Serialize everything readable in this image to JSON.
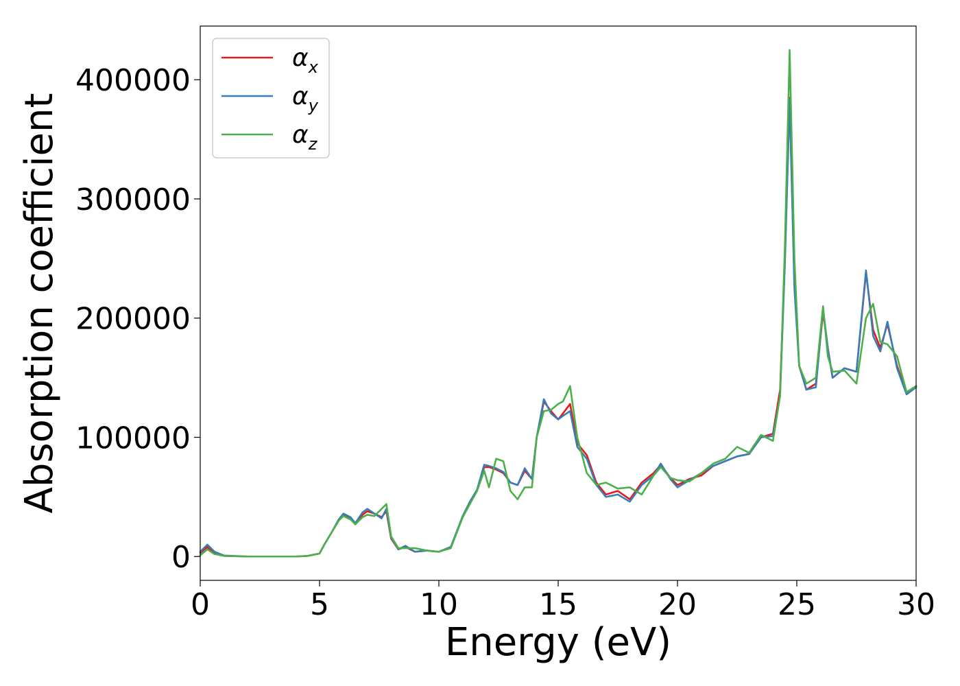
{
  "chart_data": {
    "type": "line",
    "title": "",
    "xlabel": "Energy (eV)",
    "ylabel": "Absorption coefficient",
    "xlim": [
      0,
      30
    ],
    "ylim": [
      -20000,
      445000
    ],
    "xticks": [
      0,
      5,
      10,
      15,
      20,
      25,
      30
    ],
    "yticks": [
      0,
      100000,
      200000,
      300000,
      400000
    ],
    "grid": false,
    "legend_position": "top-left",
    "series": [
      {
        "name": "α",
        "subscript": "x",
        "color": "#e41a1c",
        "x": [
          0,
          0.3,
          0.6,
          1,
          2,
          3,
          4,
          4.5,
          5,
          5.2,
          5.5,
          5.8,
          6.0,
          6.3,
          6.5,
          6.8,
          7.0,
          7.3,
          7.6,
          7.8,
          8.0,
          8.3,
          8.6,
          9.0,
          9.5,
          10.0,
          10.5,
          11.0,
          11.3,
          11.6,
          11.9,
          12.1,
          12.4,
          12.7,
          13.0,
          13.3,
          13.6,
          13.9,
          14.1,
          14.4,
          14.7,
          15.0,
          15.2,
          15.5,
          15.8,
          16.2,
          16.6,
          17.0,
          17.5,
          18.0,
          18.5,
          19.0,
          19.3,
          19.7,
          20.0,
          20.5,
          21.0,
          21.5,
          22.0,
          22.5,
          23.0,
          23.5,
          24.0,
          24.3,
          24.5,
          24.7,
          24.9,
          25.1,
          25.4,
          25.8,
          26.1,
          26.3,
          26.5,
          27.0,
          27.5,
          27.9,
          28.2,
          28.5,
          28.8,
          29.2,
          29.6,
          30.0
        ],
        "y": [
          3000,
          8000,
          2500,
          500,
          0,
          0,
          0,
          500,
          2500,
          10000,
          20000,
          30000,
          35000,
          32000,
          27000,
          35000,
          38000,
          36000,
          33000,
          38000,
          15000,
          6000,
          8000,
          4000,
          5000,
          4000,
          8000,
          33000,
          45000,
          55000,
          75000,
          75000,
          73000,
          70000,
          62000,
          60000,
          72000,
          65000,
          100000,
          130000,
          122000,
          115000,
          120000,
          128000,
          95000,
          85000,
          62000,
          52000,
          55000,
          48000,
          62000,
          70000,
          77000,
          66000,
          60000,
          65000,
          68000,
          76000,
          80000,
          84000,
          86000,
          100000,
          103000,
          140000,
          250000,
          385000,
          230000,
          160000,
          140000,
          145000,
          205000,
          175000,
          150000,
          158000,
          155000,
          238000,
          190000,
          175000,
          195000,
          160000,
          137000,
          143000
        ]
      },
      {
        "name": "α",
        "subscript": "y",
        "color": "#377eb8",
        "x": [
          0,
          0.3,
          0.6,
          1,
          2,
          3,
          4,
          4.5,
          5,
          5.2,
          5.5,
          5.8,
          6.0,
          6.3,
          6.5,
          6.8,
          7.0,
          7.3,
          7.6,
          7.8,
          8.0,
          8.3,
          8.6,
          9.0,
          9.5,
          10.0,
          10.5,
          11.0,
          11.3,
          11.6,
          11.9,
          12.1,
          12.4,
          12.7,
          13.0,
          13.3,
          13.6,
          13.9,
          14.1,
          14.4,
          14.7,
          15.0,
          15.2,
          15.5,
          15.8,
          16.2,
          16.6,
          17.0,
          17.5,
          18.0,
          18.5,
          19.0,
          19.3,
          19.7,
          20.0,
          20.5,
          21.0,
          21.5,
          22.0,
          22.5,
          23.0,
          23.5,
          24.0,
          24.3,
          24.5,
          24.7,
          24.9,
          25.1,
          25.4,
          25.8,
          26.1,
          26.3,
          26.5,
          27.0,
          27.5,
          27.9,
          28.2,
          28.5,
          28.8,
          29.2,
          29.6,
          30.0
        ],
        "y": [
          4000,
          10000,
          4000,
          800,
          0,
          0,
          0,
          500,
          2500,
          10000,
          20000,
          31000,
          36000,
          33000,
          28000,
          37000,
          40000,
          36000,
          32000,
          40000,
          16000,
          6000,
          9000,
          4000,
          5000,
          4000,
          8000,
          34000,
          46000,
          56000,
          77000,
          76000,
          74000,
          71000,
          62000,
          60000,
          74000,
          65000,
          100000,
          132000,
          120000,
          115000,
          118000,
          122000,
          92000,
          82000,
          60000,
          50000,
          52000,
          46000,
          60000,
          68000,
          78000,
          65000,
          58000,
          64000,
          70000,
          76000,
          80000,
          84000,
          86000,
          100000,
          101000,
          135000,
          245000,
          383000,
          225000,
          160000,
          140000,
          142000,
          208000,
          175000,
          150000,
          158000,
          155000,
          240000,
          185000,
          172000,
          197000,
          158000,
          136000,
          142000
        ]
      },
      {
        "name": "α",
        "subscript": "z",
        "color": "#4daf4a",
        "x": [
          0,
          0.3,
          0.6,
          1,
          2,
          3,
          4,
          4.5,
          5,
          5.2,
          5.5,
          5.8,
          6.0,
          6.3,
          6.5,
          6.8,
          7.0,
          7.3,
          7.6,
          7.8,
          8.0,
          8.3,
          8.6,
          9.0,
          9.5,
          10.0,
          10.5,
          11.0,
          11.3,
          11.6,
          11.9,
          12.1,
          12.4,
          12.7,
          13.0,
          13.3,
          13.6,
          13.9,
          14.1,
          14.4,
          14.7,
          15.0,
          15.2,
          15.5,
          15.8,
          16.2,
          16.6,
          17.0,
          17.5,
          18.0,
          18.5,
          19.0,
          19.3,
          19.7,
          20.0,
          20.5,
          21.0,
          21.5,
          22.0,
          22.5,
          23.0,
          23.5,
          24.0,
          24.3,
          24.5,
          24.7,
          24.9,
          25.1,
          25.4,
          25.8,
          26.1,
          26.3,
          26.5,
          27.0,
          27.5,
          27.9,
          28.2,
          28.5,
          28.8,
          29.2,
          29.6,
          30.0
        ],
        "y": [
          1000,
          6000,
          2000,
          500,
          0,
          0,
          0,
          500,
          2500,
          10000,
          20000,
          30000,
          34000,
          31000,
          27000,
          33000,
          35000,
          34000,
          40000,
          44000,
          17000,
          7000,
          7000,
          7000,
          5000,
          4000,
          7000,
          33000,
          44000,
          55000,
          72000,
          58000,
          82000,
          80000,
          55000,
          48000,
          58000,
          58000,
          100000,
          122000,
          123000,
          128000,
          130000,
          143000,
          100000,
          70000,
          60000,
          62000,
          57000,
          58000,
          52000,
          68000,
          75000,
          66000,
          64000,
          63000,
          70000,
          78000,
          82000,
          92000,
          87000,
          102000,
          97000,
          135000,
          260000,
          425000,
          250000,
          160000,
          145000,
          150000,
          210000,
          168000,
          155000,
          156000,
          145000,
          200000,
          212000,
          180000,
          178000,
          168000,
          138000,
          143000
        ]
      }
    ]
  }
}
